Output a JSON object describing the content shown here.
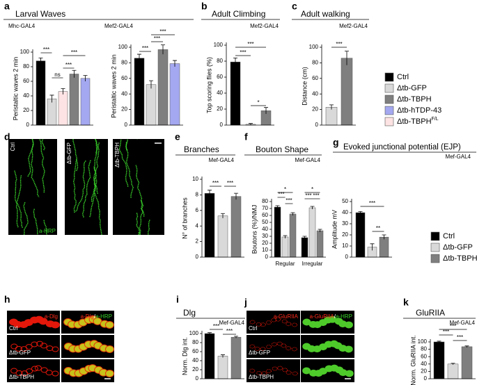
{
  "panel_letters": [
    "a",
    "b",
    "c",
    "d",
    "e",
    "f",
    "g",
    "h",
    "i",
    "j",
    "k"
  ],
  "chart_data": [
    {
      "type": "bar",
      "title": "Larval Waves",
      "subtitle": "Mhc-GAL4",
      "ylabel": "Peristaltic waves 2 min",
      "values": [
        88,
        36,
        46,
        70,
        64
      ],
      "errors": [
        4,
        5,
        4,
        5,
        4
      ],
      "colors": [
        "#000000",
        "#d9d9d9",
        "#fde3e3",
        "#7f7f7f",
        "#a4a8f0"
      ],
      "ylim": [
        0,
        100
      ],
      "yticks": [
        0,
        20,
        40,
        60,
        80,
        100
      ],
      "annotations": [
        "***",
        "ns",
        "***",
        "***"
      ]
    },
    {
      "type": "bar",
      "subtitle": "Mef2-GAL4",
      "ylabel": "Peristaltic waves 2 min",
      "values": [
        86,
        52,
        97,
        79
      ],
      "errors": [
        5,
        5,
        6,
        4
      ],
      "colors": [
        "#000000",
        "#d9d9d9",
        "#7f7f7f",
        "#a4a8f0"
      ],
      "ylim": [
        0,
        100
      ],
      "yticks": [
        0,
        20,
        40,
        60,
        80,
        100
      ],
      "annotations": [
        "***",
        "***",
        "***"
      ]
    },
    {
      "type": "bar",
      "title": "Adult Climbing",
      "subtitle": "Mef2-GAL4",
      "ylabel": "Top scoring flies (%)",
      "values": [
        79,
        1,
        18
      ],
      "errors": [
        5,
        1,
        4
      ],
      "colors": [
        "#000000",
        "#d9d9d9",
        "#7f7f7f"
      ],
      "ylim": [
        0,
        100
      ],
      "yticks": [
        0,
        20,
        40,
        60,
        80,
        100
      ],
      "annotations": [
        "***",
        "***",
        "*"
      ]
    },
    {
      "type": "bar",
      "title": "Adult walking",
      "subtitle": "Mef2-GAL4",
      "ylabel": "Distance (cm)",
      "values": [
        23,
        86
      ],
      "errors": [
        3,
        9
      ],
      "colors": [
        "#d9d9d9",
        "#7f7f7f"
      ],
      "ylim": [
        0,
        100
      ],
      "yticks": [
        0,
        20,
        40,
        60,
        80,
        100
      ],
      "annotations": [
        "***"
      ],
      "legend": [
        {
          "name": "Ctrl",
          "color": "#000000"
        },
        {
          "name": "Δtb-GFP",
          "color": "#d9d9d9"
        },
        {
          "name": "Δtb-TBPH",
          "color": "#7f7f7f"
        },
        {
          "name": "Δtb-hTDP-43",
          "color": "#a4a8f0"
        },
        {
          "name": "Δtb-TBPH",
          "superscript": "F/L",
          "color": "#fde3e3"
        }
      ]
    },
    {
      "type": "bar",
      "title": "Branches",
      "subtitle": "Mef-GAL4",
      "ylabel": "N° of branches",
      "values": [
        8.2,
        5.3,
        7.8
      ],
      "errors": [
        0.4,
        0.3,
        0.4
      ],
      "colors": [
        "#000000",
        "#d9d9d9",
        "#7f7f7f"
      ],
      "ylim": [
        0,
        10
      ],
      "yticks": [
        0,
        2,
        4,
        6,
        8,
        10
      ],
      "annotations": [
        "***",
        "***"
      ]
    },
    {
      "type": "grouped_bar",
      "title": "Bouton Shape",
      "subtitle": "Mef-GAL4",
      "ylabel": "Boutons (%)/NMJ",
      "categories": [
        "Regular",
        "Irregular"
      ],
      "series": [
        {
          "color": "#000000",
          "values": [
            72,
            28
          ],
          "errors": [
            2,
            2
          ]
        },
        {
          "color": "#d9d9d9",
          "values": [
            29,
            71
          ],
          "errors": [
            2,
            2
          ]
        },
        {
          "color": "#7f7f7f",
          "values": [
            62,
            38
          ],
          "errors": [
            2,
            2
          ]
        }
      ],
      "ylim": [
        0,
        80
      ],
      "yticks": [
        0,
        10,
        20,
        30,
        40,
        50,
        60,
        70,
        80
      ],
      "annotations": [
        "***",
        "*",
        "***",
        "*",
        "***",
        "***"
      ]
    },
    {
      "type": "bar",
      "title": "Evoked junctional potential (EJP)",
      "subtitle": "Mef-GAL4",
      "ylabel": "Amplitude mV",
      "values": [
        40,
        9,
        18
      ],
      "errors": [
        1,
        3,
        2
      ],
      "colors": [
        "#000000",
        "#d9d9d9",
        "#7f7f7f"
      ],
      "ylim": [
        0,
        50
      ],
      "yticks": [
        0,
        10,
        20,
        30,
        40,
        50
      ],
      "annotations": [
        "***",
        "**"
      ],
      "legend": [
        {
          "name": "Ctrl",
          "color": "#000000"
        },
        {
          "name": "Δtb-GFP",
          "color": "#d9d9d9"
        },
        {
          "name": "Δtb-TBPH",
          "color": "#7f7f7f"
        }
      ]
    },
    {
      "type": "bar",
      "title": "Dlg",
      "subtitle": "Mef-GAL4",
      "ylabel": "Norm. Dlg int.",
      "values": [
        100,
        50,
        92
      ],
      "errors": [
        2,
        3,
        2
      ],
      "colors": [
        "#000000",
        "#d9d9d9",
        "#7f7f7f"
      ],
      "ylim": [
        0,
        100
      ],
      "yticks": [
        0,
        20,
        40,
        60,
        80,
        100
      ],
      "annotations": [
        "***",
        "***"
      ]
    },
    {
      "type": "bar",
      "title": "GluRIIA",
      "subtitle": "Mef-GAL4",
      "ylabel": "Norm. GluRIIA int.",
      "values": [
        100,
        40,
        87
      ],
      "errors": [
        2,
        2,
        2
      ],
      "colors": [
        "#000000",
        "#d9d9d9",
        "#7f7f7f"
      ],
      "ylim": [
        0,
        100
      ],
      "yticks": [
        0,
        20,
        40,
        60,
        80,
        100
      ],
      "annotations": [
        "***",
        "***",
        "***"
      ]
    }
  ],
  "images": {
    "d": {
      "rows": [
        "Ctrl",
        "Δtb-GFP",
        "Δtb-TBPH"
      ],
      "stain": "a-HRP"
    },
    "h": {
      "rows": [
        "Ctrl",
        "Δtb-GFP",
        "Δtb-TBPH"
      ],
      "stain": "a-Dlg",
      "merge": [
        "a-Dlg",
        "/",
        "a-HRP"
      ]
    },
    "j": {
      "rows": [
        "Ctrl",
        "Δtb-GFP",
        "Δtb-TBPH"
      ],
      "stain": "a-GluRIIA",
      "merge": [
        "a-GluRIIA",
        "/",
        "a-HRP"
      ]
    }
  }
}
